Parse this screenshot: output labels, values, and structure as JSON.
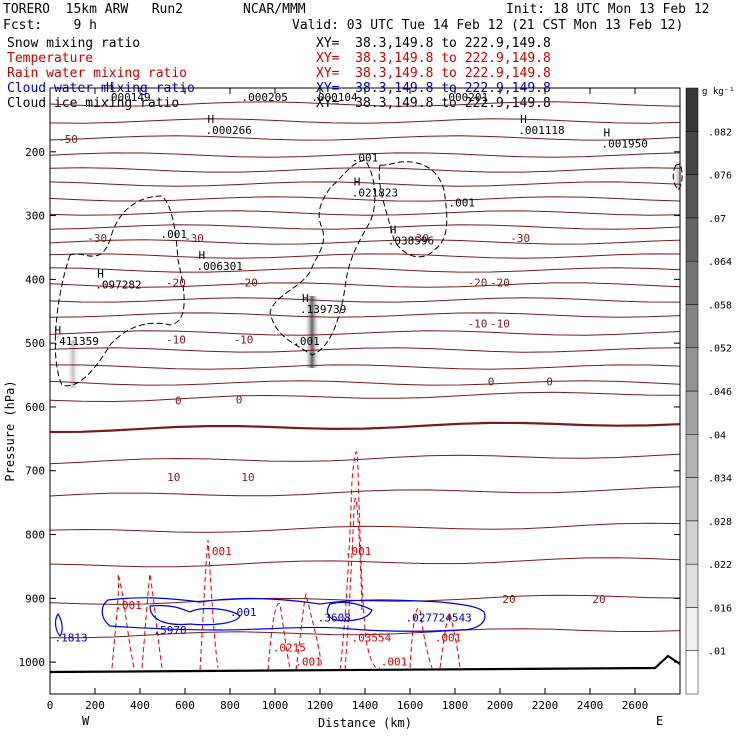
{
  "header": {
    "model": "TORERO  15km ARW   Run2",
    "center": "NCAR/MMM",
    "init": "Init: 18 UTC Mon 13 Feb 12",
    "fcst": "Fcst:    9 h",
    "valid": "Valid: 03 UTC Tue 14 Feb 12 (21 CST Mon 13 Feb 12)"
  },
  "fields": [
    {
      "name": "Snow mixing ratio",
      "xy": "XY=  38.3,149.8 to 222.9,149.8",
      "color": "#000000"
    },
    {
      "name": "Temperature",
      "xy": "XY=  38.3,149.8 to 222.9,149.8",
      "color": "#cc0000"
    },
    {
      "name": "Rain water mixing ratio",
      "xy": "XY=  38.3,149.8 to 222.9,149.8",
      "color": "#cc0000"
    },
    {
      "name": "Cloud water mixing ratio",
      "xy": "XY=  38.3,149.8 to 222.9,149.8",
      "color": "#0000cc"
    },
    {
      "name": "Cloud ice mixing ratio",
      "xy": "XY=  38.3,149.8 to 222.9,149.8",
      "color": "#000000"
    }
  ],
  "chart_data": {
    "type": "heatmap",
    "xlabel": "Distance (km)",
    "ylabel": "Pressure (hPa)",
    "xlim": [
      0,
      2800
    ],
    "ylim": [
      1050,
      100
    ],
    "x_ticks": [
      0,
      200,
      400,
      600,
      800,
      1000,
      1200,
      1400,
      1600,
      1800,
      2000,
      2200,
      2400,
      2600
    ],
    "y_ticks": [
      200,
      300,
      400,
      500,
      600,
      700,
      800,
      900,
      1000
    ],
    "west_label": "W",
    "east_label": "E",
    "colorbar": {
      "unit": "g kg⁻¹",
      "ticks": [
        ".01",
        ".016",
        ".022",
        ".028",
        ".034",
        ".04",
        ".046",
        ".052",
        ".058",
        ".064",
        ".07",
        ".076",
        ".082"
      ]
    },
    "temperature_contours": [
      {
        "label": "-50",
        "x": 80,
        "p": 180
      },
      {
        "label": "-30",
        "x": 210,
        "p": 335
      },
      {
        "label": "-30",
        "x": 640,
        "p": 335
      },
      {
        "label": "-30",
        "x": 1640,
        "p": 335
      },
      {
        "label": "-30",
        "x": 2090,
        "p": 335
      },
      {
        "label": "-20",
        "x": 560,
        "p": 405
      },
      {
        "label": "-20",
        "x": 880,
        "p": 405
      },
      {
        "label": "-20",
        "x": 1900,
        "p": 405
      },
      {
        "label": "-20",
        "x": 2000,
        "p": 405
      },
      {
        "label": "-10",
        "x": 560,
        "p": 494
      },
      {
        "label": "-10",
        "x": 860,
        "p": 494
      },
      {
        "label": "-10",
        "x": 1900,
        "p": 469
      },
      {
        "label": "-10",
        "x": 2000,
        "p": 469
      },
      {
        "label": "0",
        "x": 570,
        "p": 590
      },
      {
        "label": "0",
        "x": 840,
        "p": 588
      },
      {
        "label": "0",
        "x": 1960,
        "p": 560
      },
      {
        "label": "0",
        "x": 2220,
        "p": 560
      },
      {
        "label": "10",
        "x": 550,
        "p": 710
      },
      {
        "label": "10",
        "x": 880,
        "p": 710
      },
      {
        "label": "20",
        "x": 2040,
        "p": 901
      },
      {
        "label": "20",
        "x": 2440,
        "p": 901
      }
    ],
    "extrema_labels": [
      {
        "mark": "H",
        "value": ".000149",
        "x": 250,
        "p": 120
      },
      {
        "mark": "",
        "value": ".000205",
        "x": 860,
        "p": 120
      },
      {
        "mark": "",
        "value": ".000104",
        "x": 1170,
        "p": 120
      },
      {
        "mark": "",
        "value": ".000201",
        "x": 1750,
        "p": 120
      },
      {
        "mark": "H",
        "value": ".000266",
        "x": 700,
        "p": 172
      },
      {
        "mark": "H",
        "value": ".001118",
        "x": 2090,
        "p": 172
      },
      {
        "mark": "H",
        "value": ".001950",
        "x": 2460,
        "p": 193
      },
      {
        "mark": "",
        "value": ".001",
        "x": 1350,
        "p": 215
      },
      {
        "mark": "H",
        "value": ".021823",
        "x": 1350,
        "p": 270
      },
      {
        "mark": "",
        "value": ".001",
        "x": 1780,
        "p": 286
      },
      {
        "mark": "H",
        "value": ".038596",
        "x": 1510,
        "p": 345
      },
      {
        "mark": "",
        "value": ".001",
        "x": 500,
        "p": 335
      },
      {
        "mark": "H",
        "value": ".006301",
        "x": 660,
        "p": 385
      },
      {
        "mark": "H",
        "value": ".097282",
        "x": 210,
        "p": 414
      },
      {
        "mark": "H",
        "value": ".139739",
        "x": 1120,
        "p": 453
      },
      {
        "mark": "",
        "value": ".001",
        "x": 1090,
        "p": 503
      },
      {
        "mark": "H",
        "value": ".411359",
        "x": 20,
        "p": 503
      }
    ],
    "liquid_labels": [
      {
        "value": ".001",
        "color": "red",
        "x": 690,
        "p": 832
      },
      {
        "value": ".001",
        "color": "red",
        "x": 1310,
        "p": 832
      },
      {
        "value": ".001",
        "color": "red",
        "x": 290,
        "p": 917
      },
      {
        "value": ".001",
        "color": "blue",
        "x": 800,
        "p": 928
      },
      {
        "value": ".5970",
        "color": "blue",
        "x": 460,
        "p": 956
      },
      {
        "value": ".3608",
        "color": "blue",
        "x": 1190,
        "p": 936
      },
      {
        "value": ".027724543",
        "color": "blue",
        "x": 1580,
        "p": 936
      },
      {
        "value": ".1813",
        "color": "blue",
        "x": 20,
        "p": 968
      },
      {
        "value": ".03554",
        "color": "red",
        "x": 1340,
        "p": 968
      },
      {
        "value": ".0215",
        "color": "red",
        "x": 990,
        "p": 983
      },
      {
        "value": ".001",
        "color": "red",
        "x": 1710,
        "p": 968
      },
      {
        "value": ".001",
        "color": "red",
        "x": 1090,
        "p": 1005
      },
      {
        "value": ".001",
        "color": "red",
        "x": 1470,
        "p": 1005
      }
    ]
  }
}
